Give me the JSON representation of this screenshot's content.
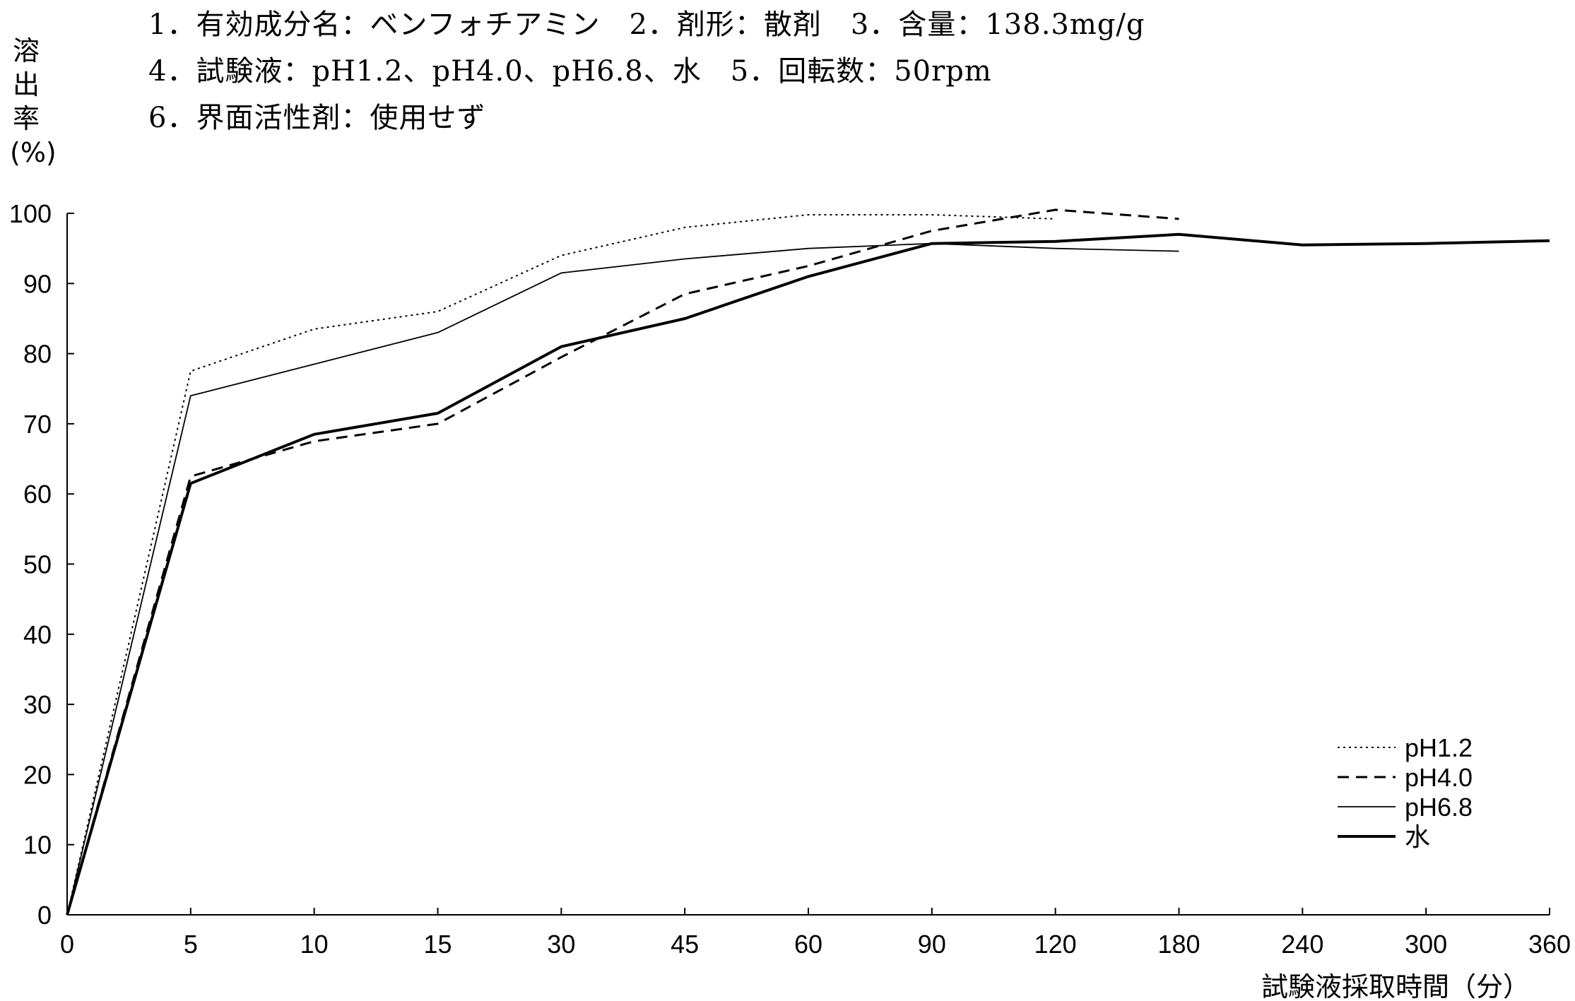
{
  "header": {
    "line1": "1．有効成分名：ベンフォチアミン　2．剤形：散剤　3．含量：138.3mg/g",
    "line2": "4．試験液：pH1.2、pH4.0、pH6.8、水　5．回転数：50rpm",
    "line3": "6．界面活性剤：使用せず"
  },
  "chart_data": {
    "type": "line",
    "title": "",
    "xlabel": "試験液採取時間（分）",
    "ylabel": "溶出率(%)",
    "categories": [
      "0",
      "5",
      "10",
      "15",
      "30",
      "45",
      "60",
      "90",
      "120",
      "180",
      "240",
      "300",
      "360"
    ],
    "ylim": [
      0,
      100
    ],
    "yticks": [
      0,
      10,
      20,
      30,
      40,
      50,
      60,
      70,
      80,
      90,
      100
    ],
    "grid": false,
    "legend_position": "bottom-right",
    "series": [
      {
        "name": "pH1.2",
        "style": "dotted",
        "values": [
          0,
          77.5,
          83.5,
          86,
          94,
          98,
          99.8,
          99.8,
          99.2,
          null,
          null,
          null,
          null
        ]
      },
      {
        "name": "pH4.0",
        "style": "dashed",
        "values": [
          0,
          62.5,
          67.5,
          70,
          79.5,
          88.5,
          92.5,
          97.5,
          100.5,
          99.2,
          null,
          null,
          null
        ]
      },
      {
        "name": "pH6.8",
        "style": "thin",
        "values": [
          0,
          74,
          78.5,
          83,
          91.5,
          93.5,
          95,
          95.7,
          95,
          94.6,
          null,
          null,
          null
        ]
      },
      {
        "name": "水",
        "style": "thick",
        "values": [
          0,
          61.5,
          68.5,
          71.5,
          81,
          85,
          91,
          95.7,
          96,
          97,
          95.5,
          95.7,
          96.1
        ]
      }
    ]
  }
}
